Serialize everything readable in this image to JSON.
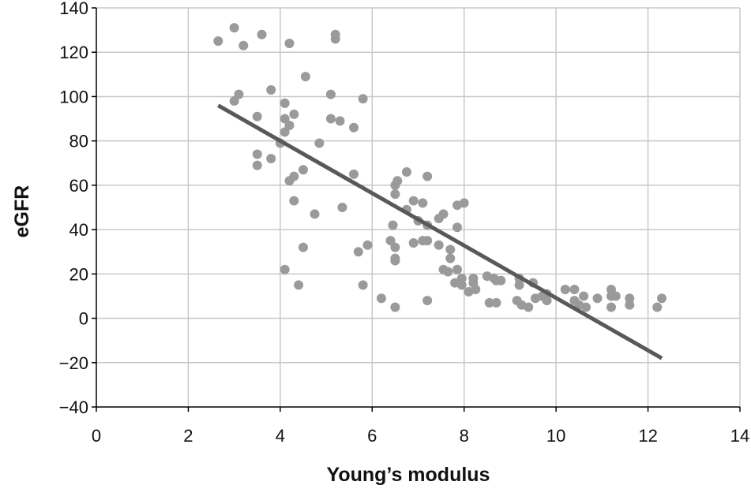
{
  "chart_data": {
    "type": "scatter",
    "title": "",
    "xlabel": "Young’s modulus",
    "ylabel": "eGFR",
    "xlim": [
      0,
      14
    ],
    "ylim": [
      -40,
      140
    ],
    "xticks": [
      0,
      2,
      4,
      6,
      8,
      10,
      12,
      14
    ],
    "yticks": [
      -40,
      -20,
      0,
      20,
      40,
      60,
      80,
      100,
      120,
      140
    ],
    "ytick_labels": [
      "−40",
      "−20",
      "0",
      "20",
      "40",
      "60",
      "80",
      "100",
      "120",
      "140"
    ],
    "grid": true,
    "legend": "none",
    "colors": {
      "points": "#9a9a9a",
      "trendline": "#595959",
      "grid": "#c8c8c8",
      "axis": "#000000"
    },
    "series": [
      {
        "type": "scatter",
        "points": [
          [
            2.65,
            125
          ],
          [
            3.0,
            131
          ],
          [
            3.6,
            128
          ],
          [
            3.2,
            123
          ],
          [
            4.2,
            124
          ],
          [
            5.2,
            128
          ],
          [
            5.2,
            126
          ],
          [
            3.8,
            103
          ],
          [
            4.55,
            109
          ],
          [
            5.8,
            99
          ],
          [
            3.1,
            101
          ],
          [
            3.0,
            98
          ],
          [
            5.1,
            101
          ],
          [
            4.1,
            97
          ],
          [
            3.5,
            91
          ],
          [
            4.1,
            90
          ],
          [
            4.3,
            92
          ],
          [
            5.1,
            90
          ],
          [
            5.3,
            89
          ],
          [
            4.2,
            87
          ],
          [
            5.6,
            86
          ],
          [
            4.1,
            84
          ],
          [
            4.0,
            79
          ],
          [
            4.85,
            79
          ],
          [
            3.5,
            74
          ],
          [
            3.8,
            72
          ],
          [
            3.5,
            69
          ],
          [
            4.5,
            67
          ],
          [
            4.3,
            64
          ],
          [
            4.2,
            62
          ],
          [
            5.6,
            65
          ],
          [
            6.75,
            66
          ],
          [
            7.2,
            64
          ],
          [
            6.5,
            60
          ],
          [
            6.55,
            62
          ],
          [
            4.3,
            53
          ],
          [
            5.35,
            50
          ],
          [
            4.75,
            47
          ],
          [
            6.5,
            56
          ],
          [
            6.9,
            53
          ],
          [
            7.1,
            52
          ],
          [
            6.75,
            49
          ],
          [
            7.85,
            51
          ],
          [
            8.0,
            52
          ],
          [
            6.45,
            42
          ],
          [
            7.0,
            44
          ],
          [
            7.2,
            42
          ],
          [
            7.45,
            45
          ],
          [
            7.55,
            47
          ],
          [
            7.85,
            41
          ],
          [
            6.4,
            35
          ],
          [
            6.9,
            34
          ],
          [
            7.1,
            35
          ],
          [
            7.2,
            35
          ],
          [
            7.45,
            33
          ],
          [
            6.5,
            32
          ],
          [
            5.9,
            33
          ],
          [
            5.7,
            30
          ],
          [
            4.5,
            32
          ],
          [
            7.7,
            31
          ],
          [
            7.7,
            27
          ],
          [
            6.5,
            27
          ],
          [
            6.5,
            26
          ],
          [
            7.55,
            22
          ],
          [
            7.65,
            21
          ],
          [
            7.85,
            22
          ],
          [
            4.1,
            22
          ],
          [
            4.4,
            15
          ],
          [
            5.8,
            15
          ],
          [
            7.8,
            16
          ],
          [
            7.95,
            15
          ],
          [
            7.95,
            18
          ],
          [
            8.2,
            18
          ],
          [
            8.2,
            16
          ],
          [
            8.5,
            19
          ],
          [
            8.65,
            18
          ],
          [
            8.7,
            17
          ],
          [
            8.8,
            17
          ],
          [
            9.2,
            18
          ],
          [
            9.5,
            16
          ],
          [
            8.1,
            12
          ],
          [
            8.25,
            13
          ],
          [
            9.2,
            15
          ],
          [
            10.2,
            13
          ],
          [
            10.4,
            13
          ],
          [
            11.2,
            13
          ],
          [
            6.2,
            9
          ],
          [
            7.2,
            8
          ],
          [
            6.5,
            5
          ],
          [
            8.55,
            7
          ],
          [
            8.7,
            7
          ],
          [
            9.15,
            8
          ],
          [
            9.25,
            6
          ],
          [
            9.4,
            5
          ],
          [
            9.55,
            9
          ],
          [
            9.7,
            10
          ],
          [
            9.8,
            11
          ],
          [
            9.8,
            8
          ],
          [
            10.4,
            8
          ],
          [
            10.6,
            10
          ],
          [
            10.5,
            6
          ],
          [
            10.65,
            5
          ],
          [
            10.9,
            9
          ],
          [
            11.2,
            10
          ],
          [
            11.3,
            10
          ],
          [
            11.2,
            5
          ],
          [
            11.6,
            9
          ],
          [
            11.6,
            6
          ],
          [
            12.2,
            5
          ],
          [
            12.3,
            9
          ]
        ]
      },
      {
        "type": "line",
        "points": [
          [
            2.65,
            96
          ],
          [
            12.3,
            -18
          ]
        ]
      }
    ]
  }
}
